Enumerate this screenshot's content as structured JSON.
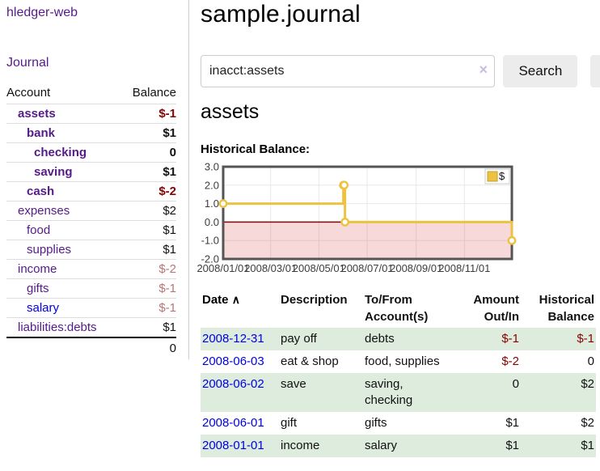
{
  "app": {
    "title": "hledger-web"
  },
  "sidebar": {
    "journal_label": "Journal",
    "accounts_table": {
      "headers": [
        "Account",
        "Balance"
      ],
      "rows": [
        {
          "name": "assets",
          "indent": 1,
          "bold": true,
          "color": "purple",
          "balance": "$-1",
          "balance_style": "neg"
        },
        {
          "name": "bank",
          "indent": 2,
          "bold": true,
          "color": "purple",
          "balance": "$1",
          "balance_style": ""
        },
        {
          "name": "checking",
          "indent": 3,
          "bold": true,
          "color": "purple",
          "balance": "0",
          "balance_style": ""
        },
        {
          "name": "saving",
          "indent": 3,
          "bold": true,
          "color": "purple",
          "balance": "$1",
          "balance_style": ""
        },
        {
          "name": "cash",
          "indent": 2,
          "bold": true,
          "color": "purple",
          "balance": "$-2",
          "balance_style": "neg"
        },
        {
          "name": "expenses",
          "indent": 1,
          "bold": false,
          "color": "purple",
          "balance": "$2",
          "balance_style": ""
        },
        {
          "name": "food",
          "indent": 2,
          "bold": false,
          "color": "purple",
          "balance": "$1",
          "balance_style": ""
        },
        {
          "name": "supplies",
          "indent": 2,
          "bold": false,
          "color": "purple",
          "balance": "$1",
          "balance_style": ""
        },
        {
          "name": "income",
          "indent": 1,
          "bold": false,
          "color": "purple",
          "balance": "$-2",
          "balance_style": "soft"
        },
        {
          "name": "gifts",
          "indent": 2,
          "bold": false,
          "color": "purple",
          "balance": "$-1",
          "balance_style": "soft"
        },
        {
          "name": "salary",
          "indent": 2,
          "bold": false,
          "color": "blue",
          "balance": "$-1",
          "balance_style": "soft"
        },
        {
          "name": "liabilities:debts",
          "indent": 1,
          "bold": false,
          "color": "purple",
          "balance": "$1",
          "balance_style": ""
        }
      ],
      "total": "0"
    }
  },
  "main": {
    "title": "sample.journal",
    "search": {
      "value": "inacct:assets",
      "clear_icon": "×",
      "button_label": "Search",
      "help_label": "?"
    },
    "account_heading": "assets",
    "chart_label": "Historical Balance:",
    "register": {
      "headers": {
        "date": {
          "label": "Date",
          "sort_icon": "∧"
        },
        "description": {
          "label": "Description"
        },
        "accounts": {
          "line1": "To/From",
          "line2": "Account(s)"
        },
        "amount": {
          "line1": "Amount",
          "line2": "Out/In"
        },
        "balance": {
          "line1": "Historical",
          "line2": "Balance"
        }
      },
      "rows": [
        {
          "date": "2008-12-31",
          "description": "pay off",
          "accounts": "debts",
          "amount": "$-1",
          "amount_negative": true,
          "balance": "$-1",
          "balance_negative": true
        },
        {
          "date": "2008-06-03",
          "description": "eat & shop",
          "accounts": "food, supplies",
          "amount": "$-2",
          "amount_negative": true,
          "balance": "0",
          "balance_negative": false
        },
        {
          "date": "2008-06-02",
          "description": "save",
          "accounts": "saving, checking",
          "amount": "0",
          "amount_negative": false,
          "balance": "$2",
          "balance_negative": false
        },
        {
          "date": "2008-06-01",
          "description": "gift",
          "accounts": "gifts",
          "amount": "$1",
          "amount_negative": false,
          "balance": "$2",
          "balance_negative": false
        },
        {
          "date": "2008-01-01",
          "description": "income",
          "accounts": "salary",
          "amount": "$1",
          "amount_negative": false,
          "balance": "$1",
          "balance_negative": false
        }
      ]
    }
  },
  "chart_data": {
    "type": "line",
    "title": "Historical Balance",
    "step": true,
    "series": [
      {
        "name": "$",
        "color": "#edc240",
        "points": [
          [
            "2008-01-01",
            1
          ],
          [
            "2008-06-01",
            2
          ],
          [
            "2008-06-02",
            2
          ],
          [
            "2008-06-03",
            0
          ],
          [
            "2008-12-31",
            -1
          ]
        ]
      }
    ],
    "xrange": [
      "2008-01-01",
      "2008-12-31"
    ],
    "ylim": [
      -2,
      3
    ],
    "yticks": [
      3.0,
      2.0,
      1.0,
      0.0,
      -1.0,
      -2.0
    ],
    "xticks": [
      {
        "date": "2008-01-01",
        "label": "2008/01/01"
      },
      {
        "date": "2008-03-01",
        "label": "2008/03/01"
      },
      {
        "date": "2008-05-01",
        "label": "2008/05/01"
      },
      {
        "date": "2008-07-01",
        "label": "2008/07/01"
      },
      {
        "date": "2008-09-01",
        "label": "2008/09/01"
      },
      {
        "date": "2008-11-01",
        "label": "2008/11/01"
      }
    ],
    "legend": {
      "label": "$",
      "position": "top-right"
    },
    "grid": true,
    "gridline_color": "#e8e8e8",
    "border_color": "#545454",
    "zero_line_color": "#8b0000",
    "negative_region_fill": "rgba(200,0,0,0.15)",
    "marker": "open-circle"
  }
}
